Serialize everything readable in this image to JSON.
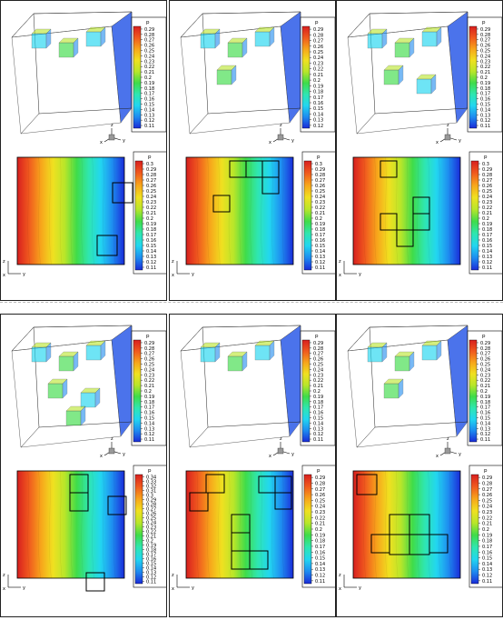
{
  "colors": {
    "scale": [
      "#1a2bd8",
      "#1e8cf0",
      "#22d6f0",
      "#2fe6b0",
      "#3fdc4a",
      "#b8e62a",
      "#f0e020",
      "#f7a51b",
      "#f05a1e",
      "#d81f1f"
    ],
    "block_color": "#000000"
  },
  "panels": [
    {
      "cube_legend": {
        "title": "p",
        "ticks": [
          "0.29",
          "0.28",
          "0.27",
          "0.26",
          "0.25",
          "0.24",
          "0.23",
          "0.22",
          "0.21",
          "0.2",
          "0.19",
          "0.18",
          "0.17",
          "0.16",
          "0.15",
          "0.14",
          "0.13",
          "0.12",
          "0.11"
        ]
      },
      "section_legend": {
        "title": "p",
        "ticks": [
          "0.3",
          "0.29",
          "0.28",
          "0.27",
          "0.26",
          "0.25",
          "0.24",
          "0.23",
          "0.22",
          "0.21",
          "0.2",
          "0.19",
          "0.18",
          "0.17",
          "0.16",
          "0.15",
          "0.14",
          "0.13",
          "0.12",
          "0.11"
        ]
      },
      "cube_axes": {
        "x": "x",
        "y": "y",
        "z": "z"
      },
      "section_axes": {
        "h": "y",
        "v": "z",
        "o": "x"
      }
    },
    {
      "cube_legend": {
        "title": "p",
        "ticks": [
          "0.29",
          "0.28",
          "0.27",
          "0.26",
          "0.25",
          "0.24",
          "0.23",
          "0.22",
          "0.21",
          "0.2",
          "0.19",
          "0.18",
          "0.17",
          "0.16",
          "0.15",
          "0.14",
          "0.13",
          "0.12"
        ]
      },
      "section_legend": {
        "title": "p",
        "ticks": [
          "0.3",
          "0.29",
          "0.28",
          "0.27",
          "0.26",
          "0.25",
          "0.24",
          "0.23",
          "0.22",
          "0.21",
          "0.2",
          "0.19",
          "0.18",
          "0.17",
          "0.16",
          "0.15",
          "0.14",
          "0.13",
          "0.12",
          "0.11"
        ]
      },
      "cube_axes": {
        "x": "x",
        "y": "y",
        "z": "z"
      },
      "section_axes": {
        "h": "y",
        "v": "z",
        "o": "x"
      }
    },
    {
      "cube_legend": {
        "title": "p",
        "ticks": [
          "0.29",
          "0.28",
          "0.27",
          "0.26",
          "0.25",
          "0.24",
          "0.23",
          "0.22",
          "0.21",
          "0.2",
          "0.19",
          "0.18",
          "0.17",
          "0.16",
          "0.15",
          "0.14",
          "0.13",
          "0.12",
          "0.11"
        ]
      },
      "section_legend": {
        "title": "p",
        "ticks": [
          "0.3",
          "0.29",
          "0.28",
          "0.27",
          "0.26",
          "0.25",
          "0.24",
          "0.23",
          "0.22",
          "0.21",
          "0.2",
          "0.19",
          "0.18",
          "0.17",
          "0.16",
          "0.15",
          "0.14",
          "0.13",
          "0.12",
          "0.11"
        ]
      },
      "cube_axes": {
        "x": "x",
        "y": "y",
        "z": "z"
      },
      "section_axes": {
        "h": "y",
        "v": "z",
        "o": "x"
      }
    },
    {
      "cube_legend": {
        "title": "p",
        "ticks": [
          "0.29",
          "0.28",
          "0.27",
          "0.26",
          "0.25",
          "0.24",
          "0.23",
          "0.22",
          "0.21",
          "0.2",
          "0.19",
          "0.18",
          "0.17",
          "0.16",
          "0.15",
          "0.14",
          "0.13",
          "0.12",
          "0.11"
        ]
      },
      "section_legend": {
        "title": "p",
        "ticks": [
          "0.34",
          "0.33",
          "0.32",
          "0.31",
          "0.3",
          "0.29",
          "0.28",
          "0.27",
          "0.26",
          "0.25",
          "0.24",
          "0.23",
          "0.22",
          "0.21",
          "0.2",
          "0.19",
          "0.18",
          "0.17",
          "0.16",
          "0.15",
          "0.14",
          "0.13",
          "0.12",
          "0.11"
        ]
      },
      "cube_axes": {
        "x": "x",
        "y": "y",
        "z": "z"
      },
      "section_axes": {
        "h": "y",
        "v": "z",
        "o": "x"
      }
    },
    {
      "cube_legend": {
        "title": "p",
        "ticks": [
          "0.29",
          "0.28",
          "0.27",
          "0.26",
          "0.25",
          "0.24",
          "0.23",
          "0.22",
          "0.21",
          "0.2",
          "0.19",
          "0.18",
          "0.17",
          "0.16",
          "0.15",
          "0.14",
          "0.13",
          "0.12",
          "0.11"
        ]
      },
      "section_legend": {
        "title": "p",
        "ticks": [
          "0.29",
          "0.28",
          "0.27",
          "0.26",
          "0.25",
          "0.24",
          "0.23",
          "0.22",
          "0.21",
          "0.2",
          "0.19",
          "0.18",
          "0.17",
          "0.16",
          "0.15",
          "0.14",
          "0.13",
          "0.12",
          "0.11"
        ]
      },
      "cube_axes": {
        "x": "x",
        "y": "y",
        "z": "z"
      },
      "section_axes": {
        "h": "y",
        "v": "z",
        "o": "x"
      }
    },
    {
      "cube_legend": {
        "title": "p",
        "ticks": [
          "0.29",
          "0.28",
          "0.27",
          "0.26",
          "0.25",
          "0.24",
          "0.23",
          "0.22",
          "0.21",
          "0.2",
          "0.19",
          "0.18",
          "0.17",
          "0.16",
          "0.15",
          "0.14",
          "0.13",
          "0.12",
          "0.11"
        ]
      },
      "section_legend": {
        "title": "p",
        "ticks": [
          "0.29",
          "0.28",
          "0.27",
          "0.26",
          "0.25",
          "0.24",
          "0.23",
          "0.22",
          "0.21",
          "0.2",
          "0.19",
          "0.18",
          "0.17",
          "0.16",
          "0.15",
          "0.14",
          "0.13",
          "0.12",
          "0.11"
        ]
      },
      "cube_axes": {
        "x": "x",
        "y": "y",
        "z": "z"
      },
      "section_axes": {
        "h": "y",
        "v": "z",
        "o": "x"
      }
    }
  ]
}
